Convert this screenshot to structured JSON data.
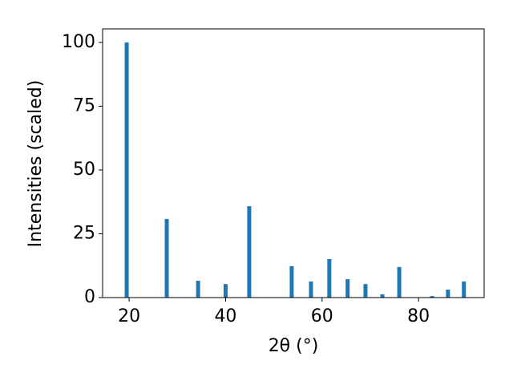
{
  "chart_data": {
    "type": "bar",
    "xlabel": "2θ (°)",
    "ylabel": "Intensities (scaled)",
    "x": [
      19.5,
      27.8,
      34.3,
      40.0,
      44.9,
      53.7,
      57.7,
      61.5,
      65.3,
      69.0,
      72.5,
      76.0,
      82.8,
      86.1,
      89.4
    ],
    "values": [
      100,
      30.8,
      6.6,
      5.3,
      35.8,
      12.3,
      6.3,
      15.1,
      7.2,
      5.3,
      1.3,
      12.0,
      0.6,
      3.1,
      6.3
    ],
    "color": "#1f77b4",
    "xlim": [
      14.5,
      93.6
    ],
    "ylim": [
      0,
      105.3
    ],
    "xticks": [
      20,
      40,
      60,
      80
    ],
    "yticks": [
      0,
      25,
      50,
      75,
      100
    ],
    "grid": false
  }
}
